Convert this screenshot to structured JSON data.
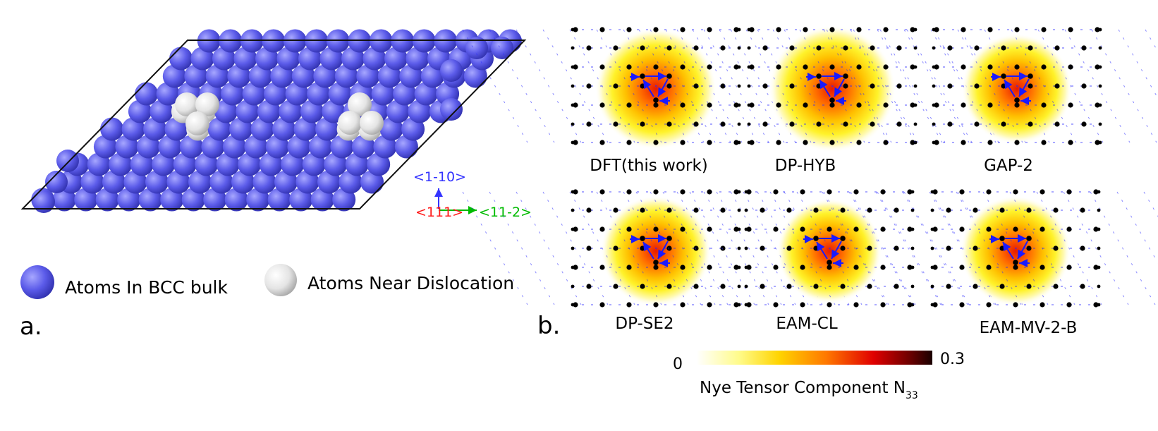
{
  "panel_a": {
    "label": "a.",
    "axes": {
      "up": "<1-10>",
      "out": "<111>",
      "right": "<11-2>"
    },
    "legend": [
      {
        "label": "Atoms In BCC bulk",
        "kind": "bulk"
      },
      {
        "label": "Atoms Near Dislocation",
        "kind": "dislocation"
      }
    ]
  },
  "panel_b": {
    "label": "b.",
    "maps": [
      {
        "label": "DFT(this work)",
        "intensity": 0.95
      },
      {
        "label": "DP-HYB",
        "intensity": 1.0
      },
      {
        "label": "GAP-2",
        "intensity": 0.85
      },
      {
        "label": "DP-SE2",
        "intensity": 0.85
      },
      {
        "label": "EAM-CL",
        "intensity": 0.8
      },
      {
        "label": "EAM-MV-2-B",
        "intensity": 0.85
      }
    ],
    "colorbar": {
      "min_label": "0",
      "max_label": "0.3",
      "title_main": "Nye Tensor Component N",
      "title_sub": "33"
    }
  },
  "colors": {
    "bulk_atom": "#5a5ae8",
    "dislocation_atom": "#e6e6e6",
    "axis_up": "#3333ff",
    "axis_out": "#ff1a1a",
    "axis_right": "#00bb00",
    "arrow": "#1a1aff"
  }
}
